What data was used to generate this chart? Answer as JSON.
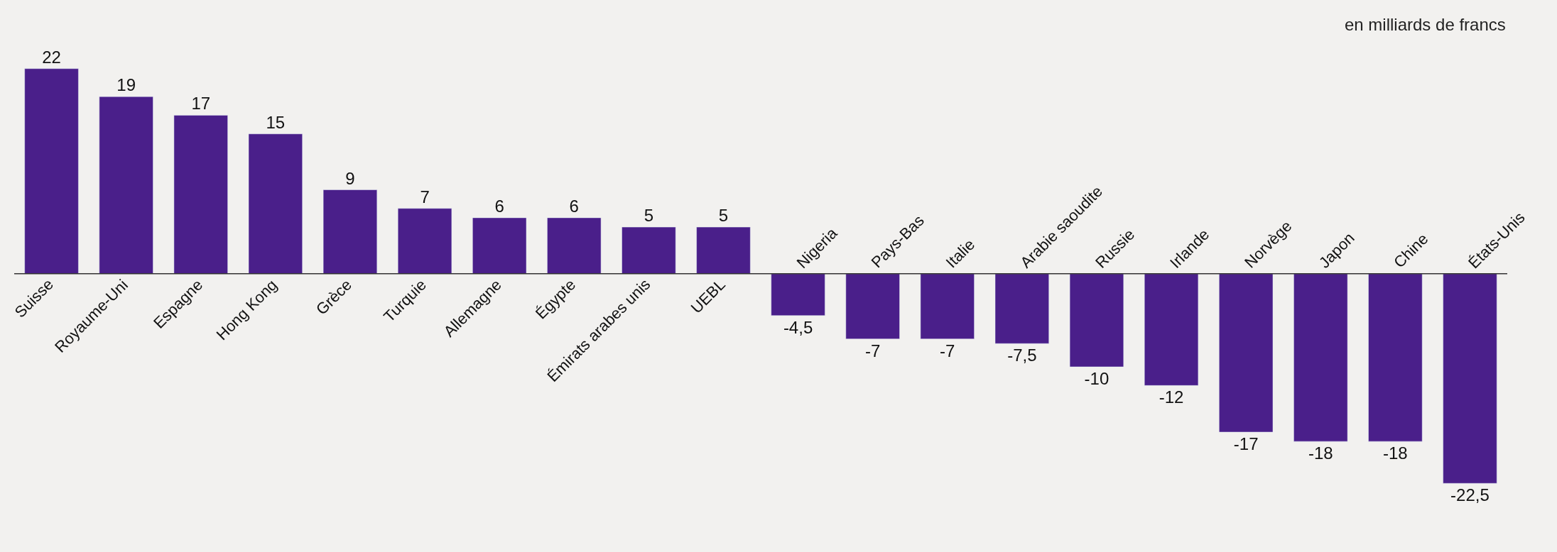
{
  "chart_data": {
    "type": "bar",
    "subtitle": "en milliards de francs",
    "categories": [
      "Suisse",
      "Royaume-Uni",
      "Espagne",
      "Hong Kong",
      "Grèce",
      "Turquie",
      "Allemagne",
      "Égypte",
      "Émirats arabes unis",
      "UEBL",
      "Nigeria",
      "Pays-Bas",
      "Italie",
      "Arabie saoudite",
      "Russie",
      "Irlande",
      "Norvège",
      "Japon",
      "Chine",
      "États-Unis"
    ],
    "values": [
      22,
      19,
      17,
      15,
      9,
      7,
      6,
      6,
      5,
      5,
      -4.5,
      -7,
      -7,
      -7.5,
      -10,
      -12,
      -17,
      -18,
      -18,
      -22.5
    ],
    "value_labels": [
      "22",
      "19",
      "17",
      "15",
      "9",
      "7",
      "6",
      "6",
      "5",
      "5",
      "-4,5",
      "-7",
      "-7",
      "-7,5",
      "-10",
      "-12",
      "-17",
      "-18",
      "-18",
      "-22,5"
    ],
    "color": "#4a1f8a"
  }
}
